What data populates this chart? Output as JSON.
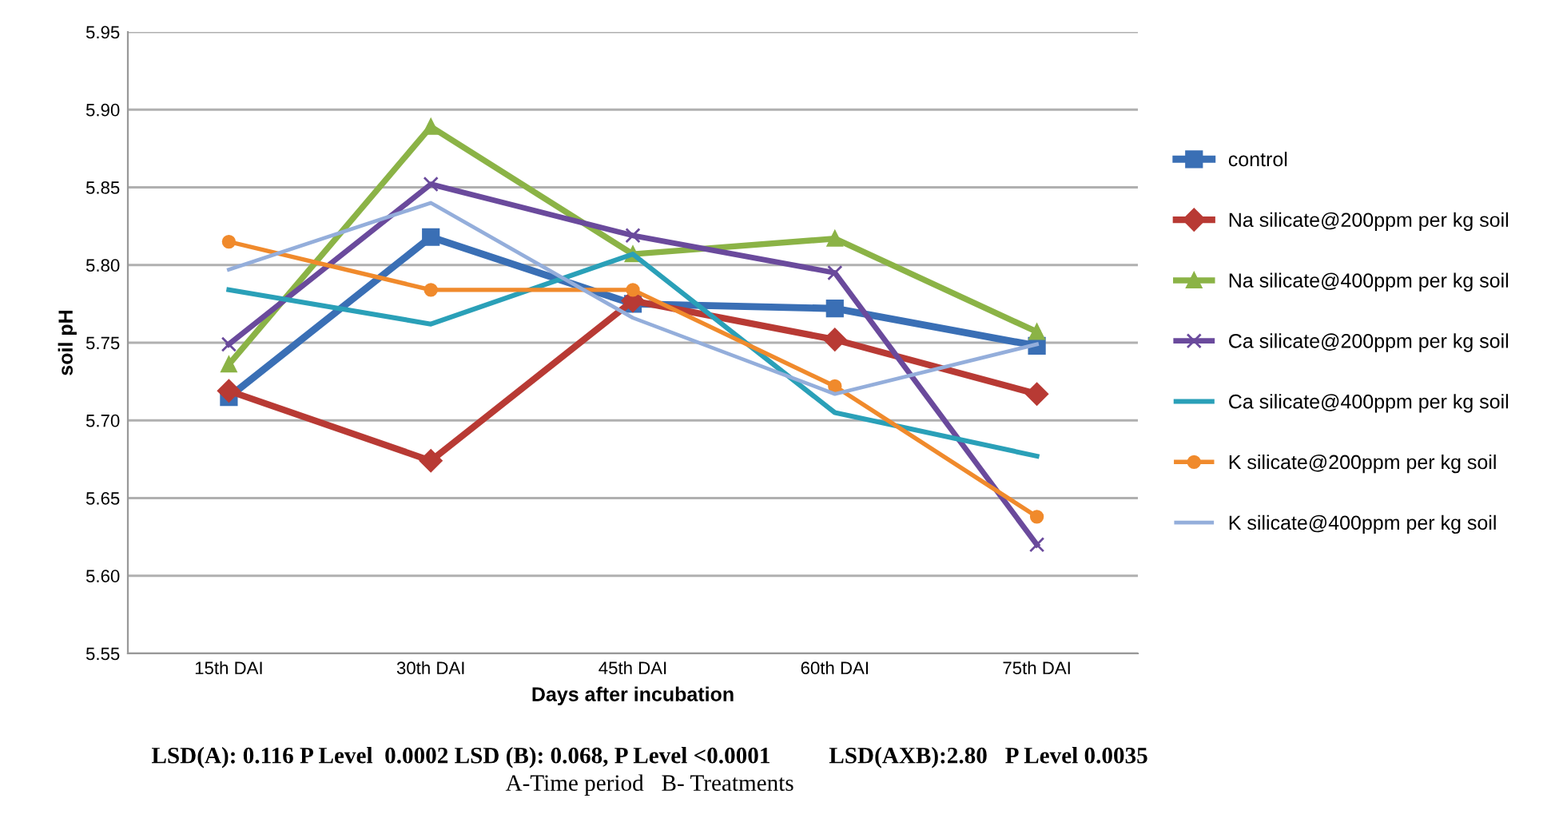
{
  "chart_data": {
    "type": "line",
    "xlabel": "Days after incubation",
    "ylabel": "soil pH",
    "categories": [
      "15th DAI",
      "30th DAI",
      "45th DAI",
      "60th DAI",
      "75th DAI"
    ],
    "ylim": [
      5.55,
      5.95
    ],
    "yticks": [
      {
        "value": 5.55,
        "label": "5.55"
      },
      {
        "value": 5.6,
        "label": "5.60"
      },
      {
        "value": 5.65,
        "label": "5.65"
      },
      {
        "value": 5.7,
        "label": "5.70"
      },
      {
        "value": 5.75,
        "label": "5.75"
      },
      {
        "value": 5.8,
        "label": "5.80"
      },
      {
        "value": 5.85,
        "label": "5.85"
      },
      {
        "value": 5.9,
        "label": "5.90"
      },
      {
        "value": 5.95,
        "label": "5.95"
      }
    ],
    "grid": "y",
    "legend": "right",
    "series": [
      {
        "name": "control",
        "color": "#3a6fb5",
        "marker": "square",
        "values": [
          5.715,
          5.818,
          5.775,
          5.772,
          5.748
        ]
      },
      {
        "name": "Na silicate@200ppm per kg soil",
        "color": "#b83a34",
        "marker": "diamond",
        "values": [
          5.719,
          5.674,
          5.777,
          5.752,
          5.717
        ]
      },
      {
        "name": "Na silicate@400ppm per kg soil",
        "color": "#8bb346",
        "marker": "triangle",
        "values": [
          5.736,
          5.889,
          5.807,
          5.817,
          5.757
        ]
      },
      {
        "name": "Ca silicate@200ppm per kg soil",
        "color": "#6a4a9c",
        "marker": "cross",
        "values": [
          5.749,
          5.852,
          5.819,
          5.795,
          5.62
        ]
      },
      {
        "name": "Ca silicate@400ppm per kg soil",
        "color": "#2aa0b8",
        "marker": "none",
        "values": [
          5.784,
          5.762,
          5.807,
          5.705,
          5.677
        ]
      },
      {
        "name": "K silicate@200ppm per kg soil",
        "color": "#f08a2c",
        "marker": "circle",
        "values": [
          5.815,
          5.784,
          5.784,
          5.722,
          5.638
        ]
      },
      {
        "name": "K silicate@400ppm per kg soil",
        "color": "#94aedb",
        "marker": "none",
        "values": [
          5.797,
          5.84,
          5.766,
          5.717,
          5.749
        ]
      }
    ],
    "annotations": [
      "LSD(A): 0.116 P Level  0.0002 LSD (B): 0.068, P Level <0.0001          LSD(AXB):2.80   P Level 0.0035",
      "A-Time period   B- Treatments"
    ]
  }
}
